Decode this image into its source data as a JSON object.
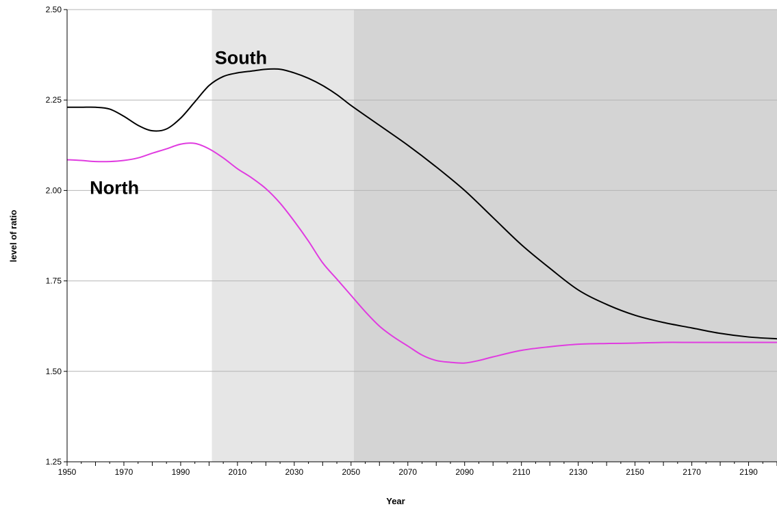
{
  "chart_data": {
    "type": "line",
    "title": "",
    "xlabel": "Year",
    "ylabel": "level of ratio",
    "xlim": [
      1950,
      2200
    ],
    "ylim": [
      1.25,
      2.5
    ],
    "x_ticks": [
      1950,
      1970,
      1990,
      2010,
      2030,
      2050,
      2070,
      2090,
      2110,
      2130,
      2150,
      2170,
      2190
    ],
    "y_ticks": [
      "1.25",
      "1.50",
      "1.75",
      "2.00",
      "2.25",
      "2.50"
    ],
    "y_tick_values": [
      1.25,
      1.5,
      1.75,
      2.0,
      2.25,
      2.5
    ],
    "grid": "horizontal",
    "shaded_regions": [
      {
        "x": [
          2001,
          2051
        ],
        "color": "#e6e6e6"
      },
      {
        "x": [
          2051,
          2200
        ],
        "color": "#d4d4d4"
      }
    ],
    "series": [
      {
        "name": "South",
        "color": "#000000",
        "label_at": [
          2002,
          2.35
        ],
        "points": [
          [
            1950,
            2.23
          ],
          [
            1955,
            2.23
          ],
          [
            1960,
            2.23
          ],
          [
            1965,
            2.225
          ],
          [
            1970,
            2.205
          ],
          [
            1975,
            2.18
          ],
          [
            1980,
            2.165
          ],
          [
            1985,
            2.17
          ],
          [
            1990,
            2.2
          ],
          [
            1995,
            2.245
          ],
          [
            2000,
            2.29
          ],
          [
            2005,
            2.315
          ],
          [
            2010,
            2.325
          ],
          [
            2015,
            2.33
          ],
          [
            2020,
            2.335
          ],
          [
            2025,
            2.335
          ],
          [
            2030,
            2.325
          ],
          [
            2035,
            2.31
          ],
          [
            2040,
            2.29
          ],
          [
            2045,
            2.265
          ],
          [
            2050,
            2.235
          ],
          [
            2060,
            2.18
          ],
          [
            2070,
            2.125
          ],
          [
            2080,
            2.065
          ],
          [
            2090,
            2.0
          ],
          [
            2100,
            1.925
          ],
          [
            2110,
            1.85
          ],
          [
            2120,
            1.785
          ],
          [
            2130,
            1.725
          ],
          [
            2140,
            1.685
          ],
          [
            2150,
            1.655
          ],
          [
            2160,
            1.635
          ],
          [
            2170,
            1.62
          ],
          [
            2180,
            1.605
          ],
          [
            2190,
            1.595
          ],
          [
            2200,
            1.59
          ]
        ]
      },
      {
        "name": "North",
        "color": "#e03be0",
        "label_at": [
          1958,
          1.99
        ],
        "points": [
          [
            1950,
            2.085
          ],
          [
            1955,
            2.083
          ],
          [
            1960,
            2.08
          ],
          [
            1965,
            2.08
          ],
          [
            1970,
            2.083
          ],
          [
            1975,
            2.09
          ],
          [
            1980,
            2.103
          ],
          [
            1985,
            2.115
          ],
          [
            1990,
            2.128
          ],
          [
            1995,
            2.13
          ],
          [
            2000,
            2.115
          ],
          [
            2005,
            2.09
          ],
          [
            2010,
            2.06
          ],
          [
            2015,
            2.035
          ],
          [
            2020,
            2.005
          ],
          [
            2025,
            1.965
          ],
          [
            2030,
            1.915
          ],
          [
            2035,
            1.86
          ],
          [
            2040,
            1.8
          ],
          [
            2045,
            1.755
          ],
          [
            2050,
            1.71
          ],
          [
            2055,
            1.665
          ],
          [
            2060,
            1.625
          ],
          [
            2065,
            1.595
          ],
          [
            2070,
            1.57
          ],
          [
            2075,
            1.545
          ],
          [
            2080,
            1.53
          ],
          [
            2085,
            1.525
          ],
          [
            2090,
            1.523
          ],
          [
            2095,
            1.53
          ],
          [
            2100,
            1.54
          ],
          [
            2110,
            1.558
          ],
          [
            2120,
            1.568
          ],
          [
            2130,
            1.575
          ],
          [
            2140,
            1.577
          ],
          [
            2150,
            1.578
          ],
          [
            2160,
            1.58
          ],
          [
            2170,
            1.58
          ],
          [
            2180,
            1.58
          ],
          [
            2190,
            1.58
          ],
          [
            2200,
            1.58
          ]
        ]
      }
    ]
  }
}
